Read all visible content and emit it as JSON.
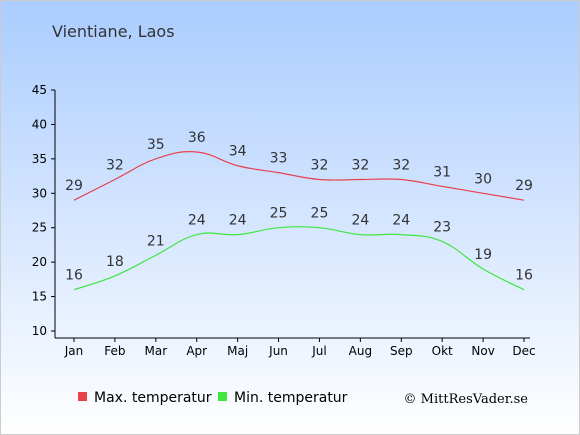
{
  "chart_data": {
    "type": "line",
    "title": "Vientiane, Laos",
    "categories": [
      "Jan",
      "Feb",
      "Mar",
      "Apr",
      "Maj",
      "Jun",
      "Jul",
      "Aug",
      "Sep",
      "Okt",
      "Nov",
      "Dec"
    ],
    "series": [
      {
        "name": "Max. temperatur",
        "color": "#e8424d",
        "values": [
          29,
          32,
          35,
          36,
          34,
          33,
          32,
          32,
          32,
          31,
          30,
          29
        ]
      },
      {
        "name": "Min. temperatur",
        "color": "#3ee63e",
        "values": [
          16,
          18,
          21,
          24,
          24,
          25,
          25,
          24,
          24,
          23,
          19,
          16
        ]
      }
    ],
    "ylim": [
      10,
      45
    ],
    "yticks": [
      10,
      15,
      20,
      25,
      30,
      35,
      40,
      45
    ],
    "xlabel": "",
    "ylabel": "",
    "grid": false,
    "legend_position": "bottom"
  },
  "credit": "© MittResVader.se",
  "colors": {
    "background_top": "#aaccff",
    "background_bottom": "#ffffff",
    "axis": "#000000"
  }
}
